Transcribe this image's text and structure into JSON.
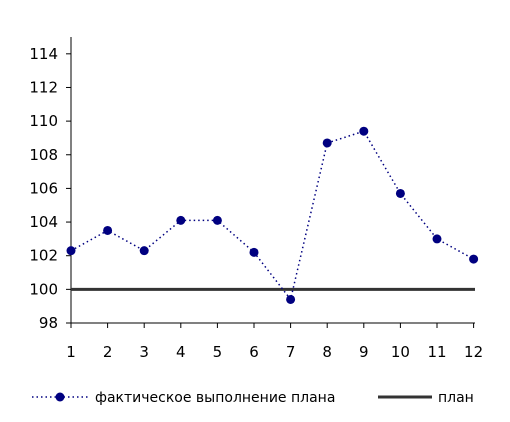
{
  "chart_data": {
    "type": "line",
    "title": "",
    "xlabel": "",
    "ylabel": "",
    "x": [
      1,
      2,
      3,
      4,
      5,
      6,
      7,
      8,
      9,
      10,
      11,
      12
    ],
    "series": [
      {
        "name": "фактическое выполнение плана",
        "values": [
          102.3,
          103.5,
          102.3,
          104.1,
          104.1,
          102.2,
          99.4,
          108.7,
          109.4,
          105.7,
          103.0,
          101.8
        ],
        "color": "#000080",
        "line_style": "dotted",
        "marker": "circle"
      },
      {
        "name": "план",
        "values": [
          100,
          100,
          100,
          100,
          100,
          100,
          100,
          100,
          100,
          100,
          100,
          100
        ],
        "color": "#333333",
        "line_style": "solid",
        "marker": "none"
      }
    ],
    "ylim": [
      98,
      115
    ],
    "yticks": [
      98,
      100,
      102,
      104,
      106,
      108,
      110,
      112,
      114
    ],
    "xticks": [
      1,
      2,
      3,
      4,
      5,
      6,
      7,
      8,
      9,
      10,
      11,
      12
    ],
    "grid": false,
    "legend_position": "bottom"
  }
}
